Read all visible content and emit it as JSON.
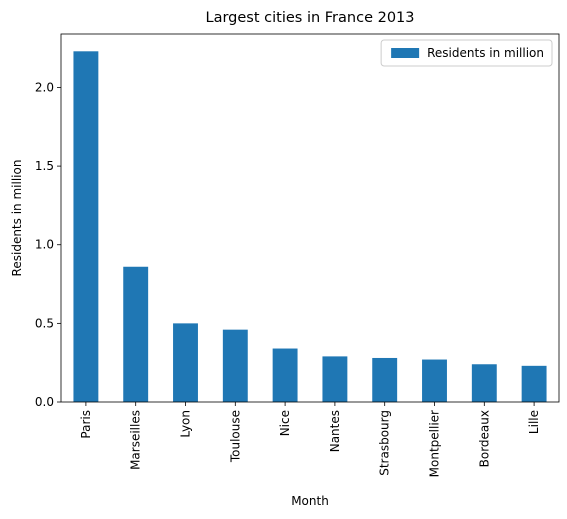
{
  "colors": {
    "bar": "#1f77b4",
    "axis": "#000000",
    "legend_border": "#cccccc"
  },
  "chart_data": {
    "type": "bar",
    "title": "Largest cities in France 2013",
    "xlabel": "Month",
    "ylabel": "Residents in million",
    "categories": [
      "Paris",
      "Marseilles",
      "Lyon",
      "Toulouse",
      "Nice",
      "Nantes",
      "Strasbourg",
      "Montpellier",
      "Bordeaux",
      "Lille"
    ],
    "series": [
      {
        "name": "Residents in million",
        "values": [
          2.23,
          0.86,
          0.5,
          0.46,
          0.34,
          0.29,
          0.28,
          0.27,
          0.24,
          0.23
        ]
      }
    ],
    "ylim": [
      0,
      2.34
    ],
    "yticks": [
      "0.0",
      "0.5",
      "1.0",
      "1.5",
      "2.0"
    ],
    "legend_position": "top-right",
    "grid": false
  }
}
